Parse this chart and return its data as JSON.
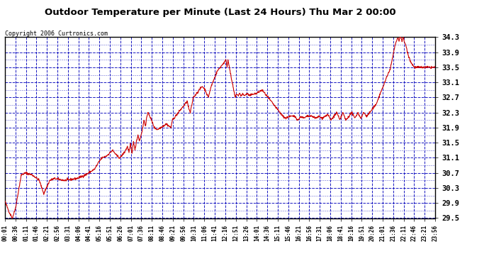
{
  "title": "Outdoor Temperature per Minute (Last 24 Hours) Thu Mar 2 00:00",
  "copyright": "Copyright 2006 Curtronics.com",
  "yticks": [
    29.5,
    29.9,
    30.3,
    30.7,
    31.1,
    31.5,
    31.9,
    32.3,
    32.7,
    33.1,
    33.5,
    33.9,
    34.3
  ],
  "ymin": 29.5,
  "ymax": 34.3,
  "line_color": "#cc0000",
  "bg_color": "#ffffff",
  "grid_color": "#0000bb",
  "xtick_labels": [
    "00:01",
    "00:36",
    "01:11",
    "01:46",
    "02:21",
    "02:56",
    "03:31",
    "04:06",
    "04:41",
    "05:16",
    "05:51",
    "06:26",
    "07:01",
    "07:36",
    "08:11",
    "08:46",
    "09:21",
    "09:56",
    "10:31",
    "11:06",
    "11:41",
    "12:16",
    "12:51",
    "13:26",
    "14:01",
    "14:36",
    "15:11",
    "15:46",
    "16:21",
    "16:56",
    "17:31",
    "18:06",
    "18:41",
    "19:16",
    "19:51",
    "20:26",
    "21:01",
    "21:36",
    "22:11",
    "22:46",
    "23:21",
    "23:56"
  ],
  "control_points": [
    [
      0,
      29.95
    ],
    [
      5,
      29.85
    ],
    [
      15,
      29.65
    ],
    [
      25,
      29.5
    ],
    [
      35,
      29.75
    ],
    [
      55,
      30.65
    ],
    [
      70,
      30.7
    ],
    [
      90,
      30.65
    ],
    [
      100,
      30.6
    ],
    [
      115,
      30.5
    ],
    [
      130,
      30.15
    ],
    [
      150,
      30.5
    ],
    [
      165,
      30.55
    ],
    [
      200,
      30.5
    ],
    [
      240,
      30.55
    ],
    [
      255,
      30.6
    ],
    [
      270,
      30.65
    ],
    [
      300,
      30.8
    ],
    [
      315,
      31.0
    ],
    [
      325,
      31.1
    ],
    [
      340,
      31.15
    ],
    [
      360,
      31.3
    ],
    [
      375,
      31.15
    ],
    [
      385,
      31.1
    ],
    [
      390,
      31.15
    ],
    [
      400,
      31.25
    ],
    [
      410,
      31.4
    ],
    [
      415,
      31.25
    ],
    [
      420,
      31.45
    ],
    [
      425,
      31.2
    ],
    [
      430,
      31.55
    ],
    [
      435,
      31.3
    ],
    [
      440,
      31.55
    ],
    [
      445,
      31.7
    ],
    [
      450,
      31.55
    ],
    [
      455,
      31.7
    ],
    [
      460,
      31.85
    ],
    [
      465,
      32.1
    ],
    [
      470,
      31.95
    ],
    [
      475,
      32.2
    ],
    [
      480,
      32.3
    ],
    [
      490,
      32.1
    ],
    [
      500,
      31.9
    ],
    [
      510,
      31.85
    ],
    [
      520,
      31.9
    ],
    [
      530,
      31.95
    ],
    [
      540,
      32.0
    ],
    [
      555,
      31.9
    ],
    [
      560,
      32.1
    ],
    [
      570,
      32.2
    ],
    [
      580,
      32.3
    ],
    [
      590,
      32.4
    ],
    [
      600,
      32.5
    ],
    [
      610,
      32.6
    ],
    [
      615,
      32.4
    ],
    [
      620,
      32.3
    ],
    [
      625,
      32.5
    ],
    [
      630,
      32.7
    ],
    [
      640,
      32.8
    ],
    [
      650,
      32.9
    ],
    [
      660,
      33.0
    ],
    [
      670,
      32.9
    ],
    [
      675,
      32.8
    ],
    [
      680,
      32.7
    ],
    [
      690,
      33.0
    ],
    [
      700,
      33.2
    ],
    [
      710,
      33.4
    ],
    [
      720,
      33.5
    ],
    [
      730,
      33.6
    ],
    [
      740,
      33.7
    ],
    [
      743,
      33.5
    ],
    [
      746,
      33.7
    ],
    [
      750,
      33.55
    ],
    [
      755,
      33.3
    ],
    [
      760,
      33.1
    ],
    [
      765,
      32.9
    ],
    [
      770,
      32.7
    ],
    [
      775,
      32.8
    ],
    [
      780,
      32.75
    ],
    [
      785,
      32.8
    ],
    [
      790,
      32.75
    ],
    [
      795,
      32.8
    ],
    [
      800,
      32.75
    ],
    [
      810,
      32.8
    ],
    [
      820,
      32.75
    ],
    [
      830,
      32.8
    ],
    [
      840,
      32.8
    ],
    [
      850,
      32.85
    ],
    [
      860,
      32.9
    ],
    [
      870,
      32.8
    ],
    [
      880,
      32.7
    ],
    [
      900,
      32.5
    ],
    [
      910,
      32.4
    ],
    [
      920,
      32.3
    ],
    [
      930,
      32.2
    ],
    [
      940,
      32.15
    ],
    [
      950,
      32.2
    ],
    [
      960,
      32.2
    ],
    [
      970,
      32.2
    ],
    [
      980,
      32.1
    ],
    [
      990,
      32.2
    ],
    [
      1000,
      32.15
    ],
    [
      1010,
      32.2
    ],
    [
      1020,
      32.2
    ],
    [
      1030,
      32.2
    ],
    [
      1040,
      32.15
    ],
    [
      1050,
      32.2
    ],
    [
      1060,
      32.15
    ],
    [
      1070,
      32.2
    ],
    [
      1080,
      32.25
    ],
    [
      1090,
      32.1
    ],
    [
      1100,
      32.2
    ],
    [
      1110,
      32.3
    ],
    [
      1120,
      32.1
    ],
    [
      1130,
      32.3
    ],
    [
      1140,
      32.1
    ],
    [
      1150,
      32.2
    ],
    [
      1160,
      32.3
    ],
    [
      1170,
      32.15
    ],
    [
      1180,
      32.3
    ],
    [
      1190,
      32.15
    ],
    [
      1200,
      32.3
    ],
    [
      1210,
      32.2
    ],
    [
      1220,
      32.3
    ],
    [
      1230,
      32.4
    ],
    [
      1240,
      32.5
    ],
    [
      1250,
      32.7
    ],
    [
      1260,
      32.9
    ],
    [
      1270,
      33.1
    ],
    [
      1280,
      33.3
    ],
    [
      1290,
      33.5
    ],
    [
      1295,
      33.7
    ],
    [
      1300,
      33.9
    ],
    [
      1305,
      34.1
    ],
    [
      1310,
      34.2
    ],
    [
      1315,
      34.3
    ],
    [
      1318,
      34.2
    ],
    [
      1321,
      34.3
    ],
    [
      1325,
      34.3
    ],
    [
      1328,
      34.2
    ],
    [
      1332,
      34.3
    ],
    [
      1335,
      34.2
    ],
    [
      1340,
      34.1
    ],
    [
      1350,
      33.8
    ],
    [
      1360,
      33.6
    ],
    [
      1370,
      33.5
    ],
    [
      1380,
      33.5
    ],
    [
      1390,
      33.5
    ],
    [
      1400,
      33.5
    ],
    [
      1410,
      33.5
    ],
    [
      1420,
      33.5
    ],
    [
      1430,
      33.5
    ],
    [
      1439,
      33.5
    ]
  ]
}
